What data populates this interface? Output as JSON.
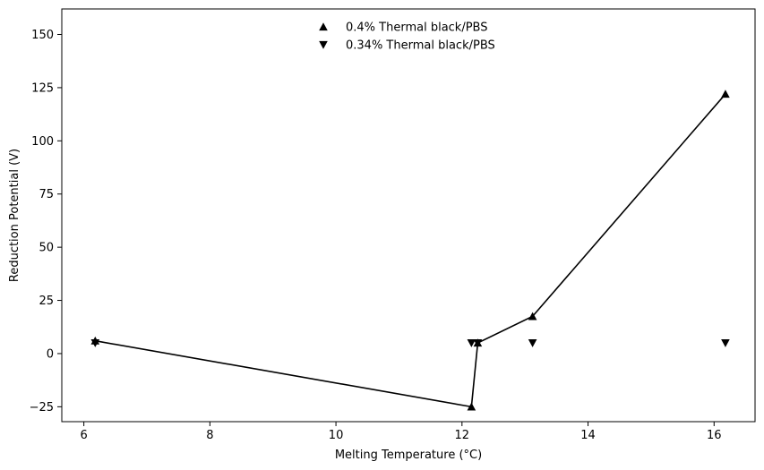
{
  "chart_data": {
    "type": "line",
    "title": "",
    "xlabel": "Melting Temperature (°C)",
    "ylabel": "Reduction Potential (V)",
    "xlim": [
      5.65,
      16.65
    ],
    "ylim": [
      -32,
      162
    ],
    "xticks": [
      6,
      8,
      10,
      12,
      14,
      16
    ],
    "yticks": [
      -25,
      0,
      25,
      50,
      75,
      100,
      125,
      150
    ],
    "xtick_labels": [
      "6",
      "8",
      "10",
      "12",
      "14",
      "16"
    ],
    "ytick_labels": [
      "−25",
      "0",
      "25",
      "50",
      "75",
      "100",
      "125",
      "150"
    ],
    "legend_position": "top-center",
    "grid": false,
    "series": [
      {
        "name": "0.4% Thermal black/PBS",
        "marker": "triangle-up",
        "color": "#000000",
        "connected": true,
        "x": [
          6.18,
          12.15,
          12.25,
          13.12,
          16.18
        ],
        "y": [
          6,
          -25,
          5,
          17.5,
          122
        ]
      },
      {
        "name": "0.34% Thermal black/PBS",
        "marker": "triangle-down",
        "color": "#000000",
        "connected": false,
        "x": [
          6.18,
          12.15,
          12.25,
          13.12,
          16.18
        ],
        "y": [
          5,
          5,
          5,
          5,
          5
        ]
      }
    ]
  }
}
